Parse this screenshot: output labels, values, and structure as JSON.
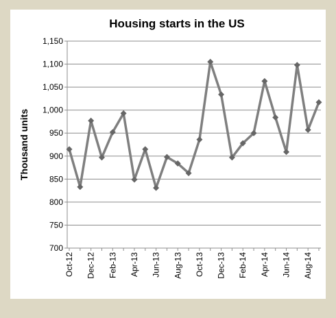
{
  "chart_data": {
    "type": "line",
    "title": "Housing starts in the US",
    "y_label": "Thousand units",
    "categories": [
      "Oct-12",
      null,
      "Dec-12",
      null,
      "Feb-13",
      null,
      "Apr-13",
      null,
      "Jun-13",
      null,
      "Aug-13",
      null,
      "Oct-13",
      null,
      "Dec-13",
      null,
      "Feb-14",
      null,
      "Apr-14",
      null,
      "Jun-14",
      null,
      "Aug-14",
      null
    ],
    "values": [
      915,
      833,
      977,
      897,
      952,
      993,
      849,
      915,
      831,
      898,
      884,
      863,
      936,
      1105,
      1034,
      897,
      928,
      950,
      1063,
      984,
      909,
      1098,
      957,
      1017
    ],
    "color": "#7f7f7f",
    "ylim": [
      700,
      1150
    ],
    "yticks": [
      700,
      750,
      800,
      850,
      900,
      950,
      {
        "value": 1000,
        "label": "1,000"
      },
      {
        "value": 1050,
        "label": "1,050"
      },
      {
        "value": 1100,
        "label": "1,100"
      },
      {
        "value": 1150,
        "label": "1,150"
      }
    ],
    "grid": true
  }
}
